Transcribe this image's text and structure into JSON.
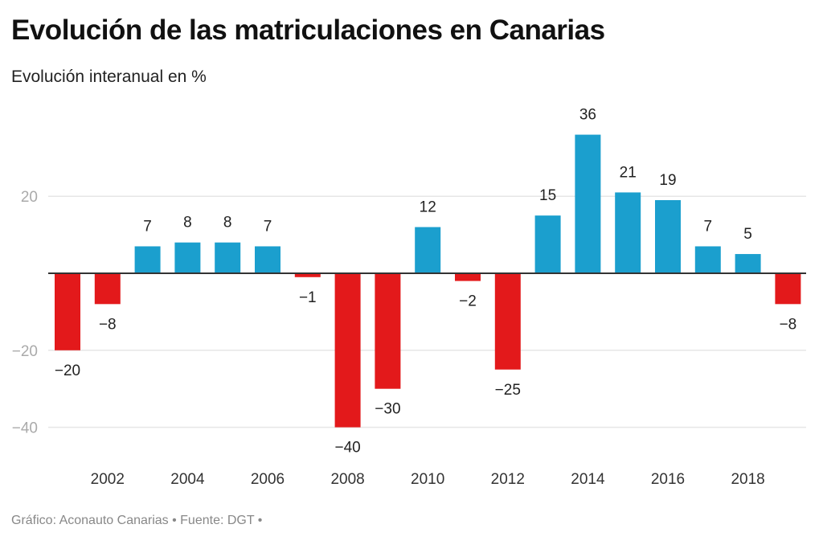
{
  "header": {
    "title": "Evolución de las matriculaciones en Canarias",
    "subtitle": "Evolución interanual en %"
  },
  "footer": {
    "credit": "Gráfico: Aconauto Canarias • Fuente: DGT •"
  },
  "colors": {
    "positive": "#1b9fce",
    "negative": "#e3191b",
    "gridline": "#e6e6e6",
    "zero_line": "#333333"
  },
  "chart_data": {
    "type": "bar",
    "title": "Evolución de las matriculaciones en Canarias",
    "subtitle": "Evolución interanual en %",
    "xlabel": "",
    "ylabel": "",
    "categories": [
      "2001",
      "2002",
      "2003",
      "2004",
      "2005",
      "2006",
      "2007",
      "2008",
      "2009",
      "2010",
      "2011",
      "2012",
      "2013",
      "2014",
      "2015",
      "2016",
      "2017",
      "2018",
      "2019"
    ],
    "values": [
      -20,
      -8,
      7,
      8,
      8,
      7,
      -1,
      -40,
      -30,
      12,
      -2,
      -25,
      15,
      36,
      21,
      19,
      7,
      5,
      -8
    ],
    "data_labels": [
      "−20",
      "−8",
      "7",
      "8",
      "8",
      "7",
      "−1",
      "−40",
      "−30",
      "12",
      "−2",
      "−25",
      "15",
      "36",
      "21",
      "19",
      "7",
      "5",
      "−8"
    ],
    "x_tick_labels": [
      "2002",
      "2004",
      "2006",
      "2008",
      "2010",
      "2012",
      "2014",
      "2016",
      "2018"
    ],
    "y_ticks": [
      20,
      -20,
      -40
    ],
    "y_tick_labels": [
      "20",
      "−20",
      "−40"
    ],
    "ylim": [
      -45,
      40
    ],
    "grid": true,
    "legend": "none",
    "source": "Gráfico: Aconauto Canarias • Fuente: DGT •"
  }
}
